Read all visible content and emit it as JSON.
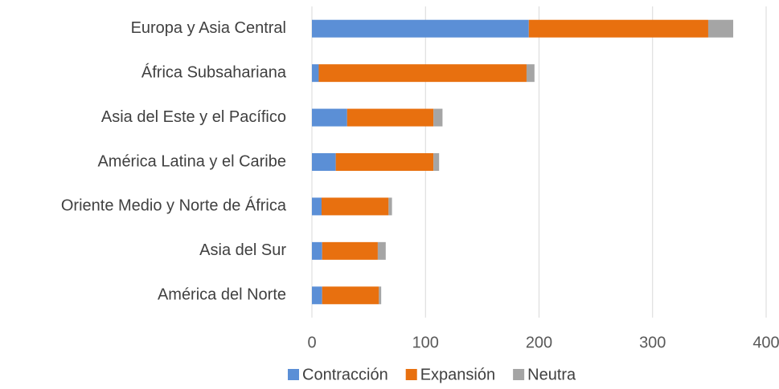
{
  "chart_data": {
    "type": "stacked-barh",
    "categories": [
      "Europa y Asia Central",
      "África Subsahariana",
      "Asia del Este y el Pacífico",
      "América Latina y el Caribe",
      "Oriente Medio y Norte de África",
      "Asia del Sur",
      "América del Norte"
    ],
    "series": [
      {
        "name": "Contracción",
        "color": "#5b8fd6",
        "values": [
          191,
          6,
          31,
          21,
          8.5,
          9,
          9
        ]
      },
      {
        "name": "Expansión",
        "color": "#e8700f",
        "values": [
          158,
          183,
          76,
          86,
          59,
          49,
          50
        ]
      },
      {
        "name": "Neutra",
        "color": "#a5a5a5",
        "values": [
          22,
          7,
          8,
          5,
          3,
          7,
          2
        ]
      }
    ],
    "xlim": [
      0,
      400
    ],
    "xticks": [
      0,
      100,
      200,
      300,
      400
    ],
    "grid": true,
    "legend": "bottom"
  }
}
